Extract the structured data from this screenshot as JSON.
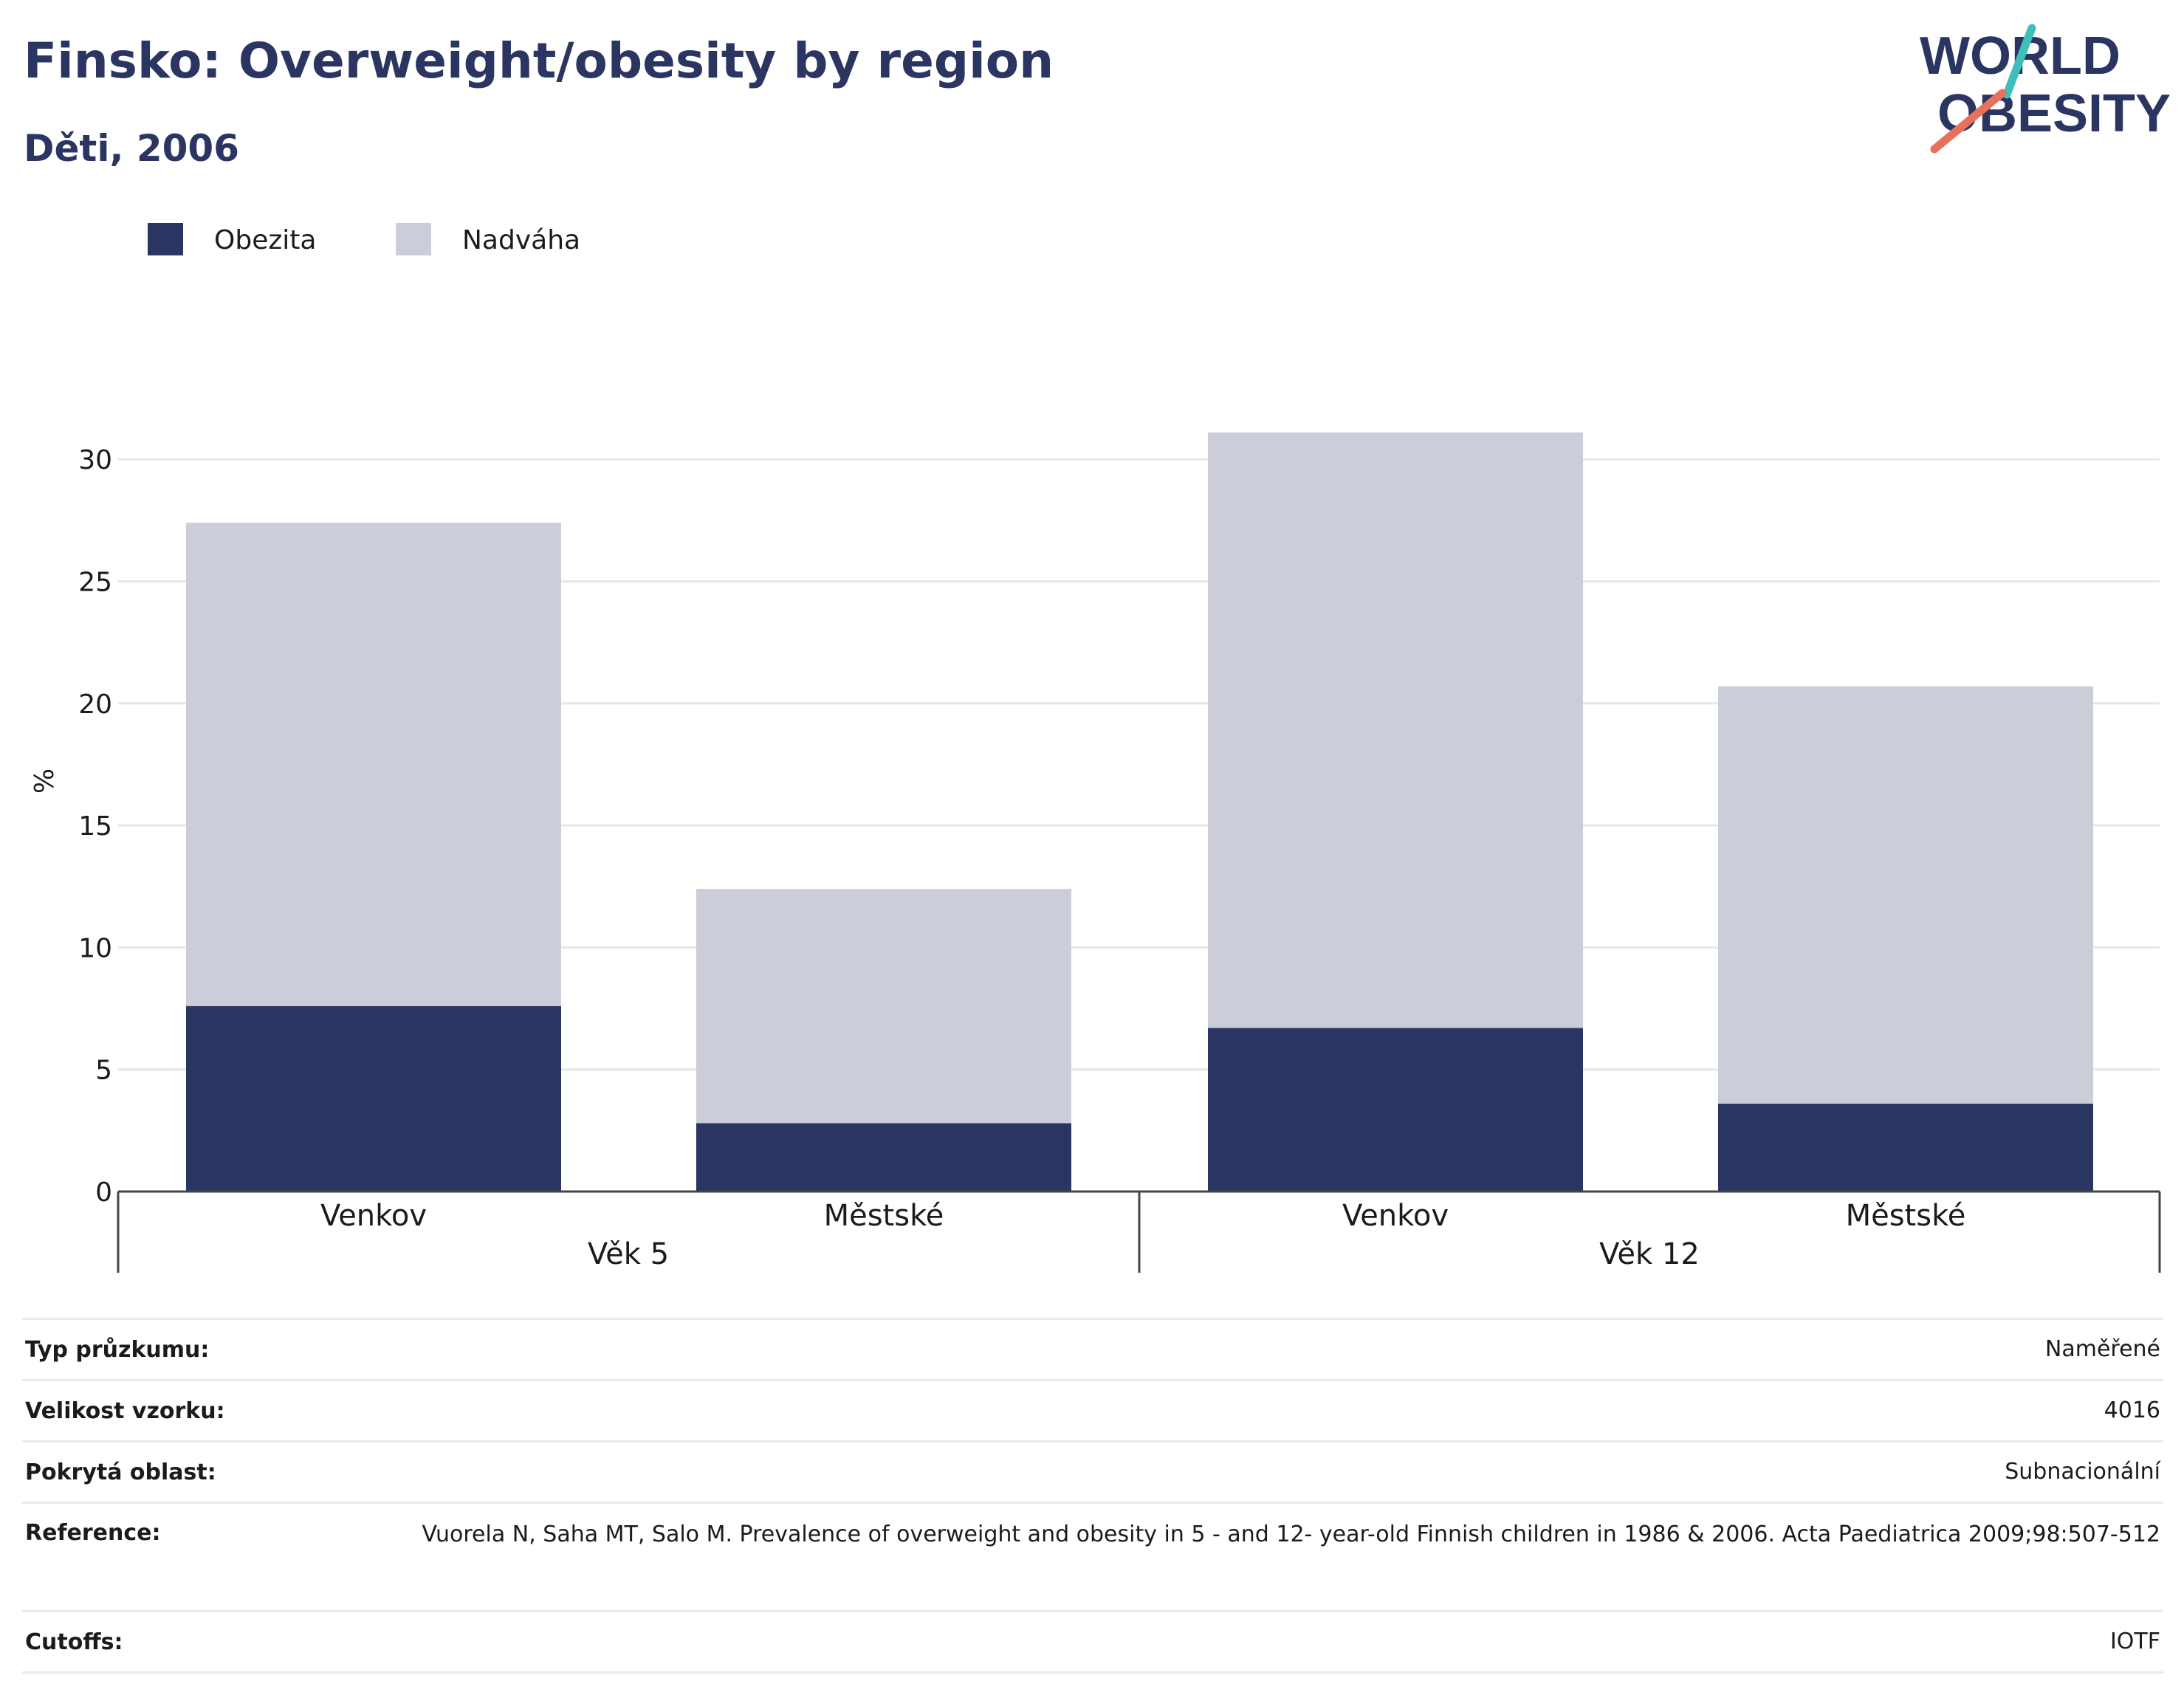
{
  "title": "Finsko: Overweight/obesity by region",
  "subtitle": "Děti, 2006",
  "logo": {
    "line1": "WORLD",
    "line2": "OBESITY",
    "accent_colors": [
      "#3fbfb9",
      "#e8715c"
    ]
  },
  "colors": {
    "obezita": "#2b3562",
    "nadvaha": "#cbcdd9",
    "grid": "#e6e6ec",
    "axis": "#444444",
    "text_dark": "#2b3562"
  },
  "chart_data": {
    "type": "bar",
    "stacked": true,
    "ylabel": "%",
    "ylim": [
      0,
      32
    ],
    "yticks": [
      0,
      5,
      10,
      15,
      20,
      25,
      30
    ],
    "grid": true,
    "legend_position": "top-left",
    "groups": [
      {
        "label": "Věk 5",
        "categories": [
          "Venkov",
          "Městské"
        ]
      },
      {
        "label": "Věk 12",
        "categories": [
          "Venkov",
          "Městské"
        ]
      }
    ],
    "series": [
      {
        "name": "Obezita",
        "color": "#2b3562",
        "values": [
          7.6,
          2.8,
          6.7,
          3.6
        ]
      },
      {
        "name": "Nadváha",
        "color": "#cbcdd9",
        "values": [
          19.8,
          9.6,
          24.4,
          17.1
        ]
      }
    ]
  },
  "info": [
    {
      "label": "Typ průzkumu:",
      "value": "Naměřené"
    },
    {
      "label": "Velikost vzorku:",
      "value": "4016"
    },
    {
      "label": "Pokrytá oblast:",
      "value": "Subnacionální"
    },
    {
      "label": "Reference:",
      "value": "Vuorela N, Saha MT, Salo M. Prevalence of overweight and obesity in 5 - and 12- year-old Finnish children in 1986 & 2006. Acta Paediatrica 2009;98:507-512"
    },
    {
      "label": "Cutoffs:",
      "value": "IOTF"
    }
  ]
}
